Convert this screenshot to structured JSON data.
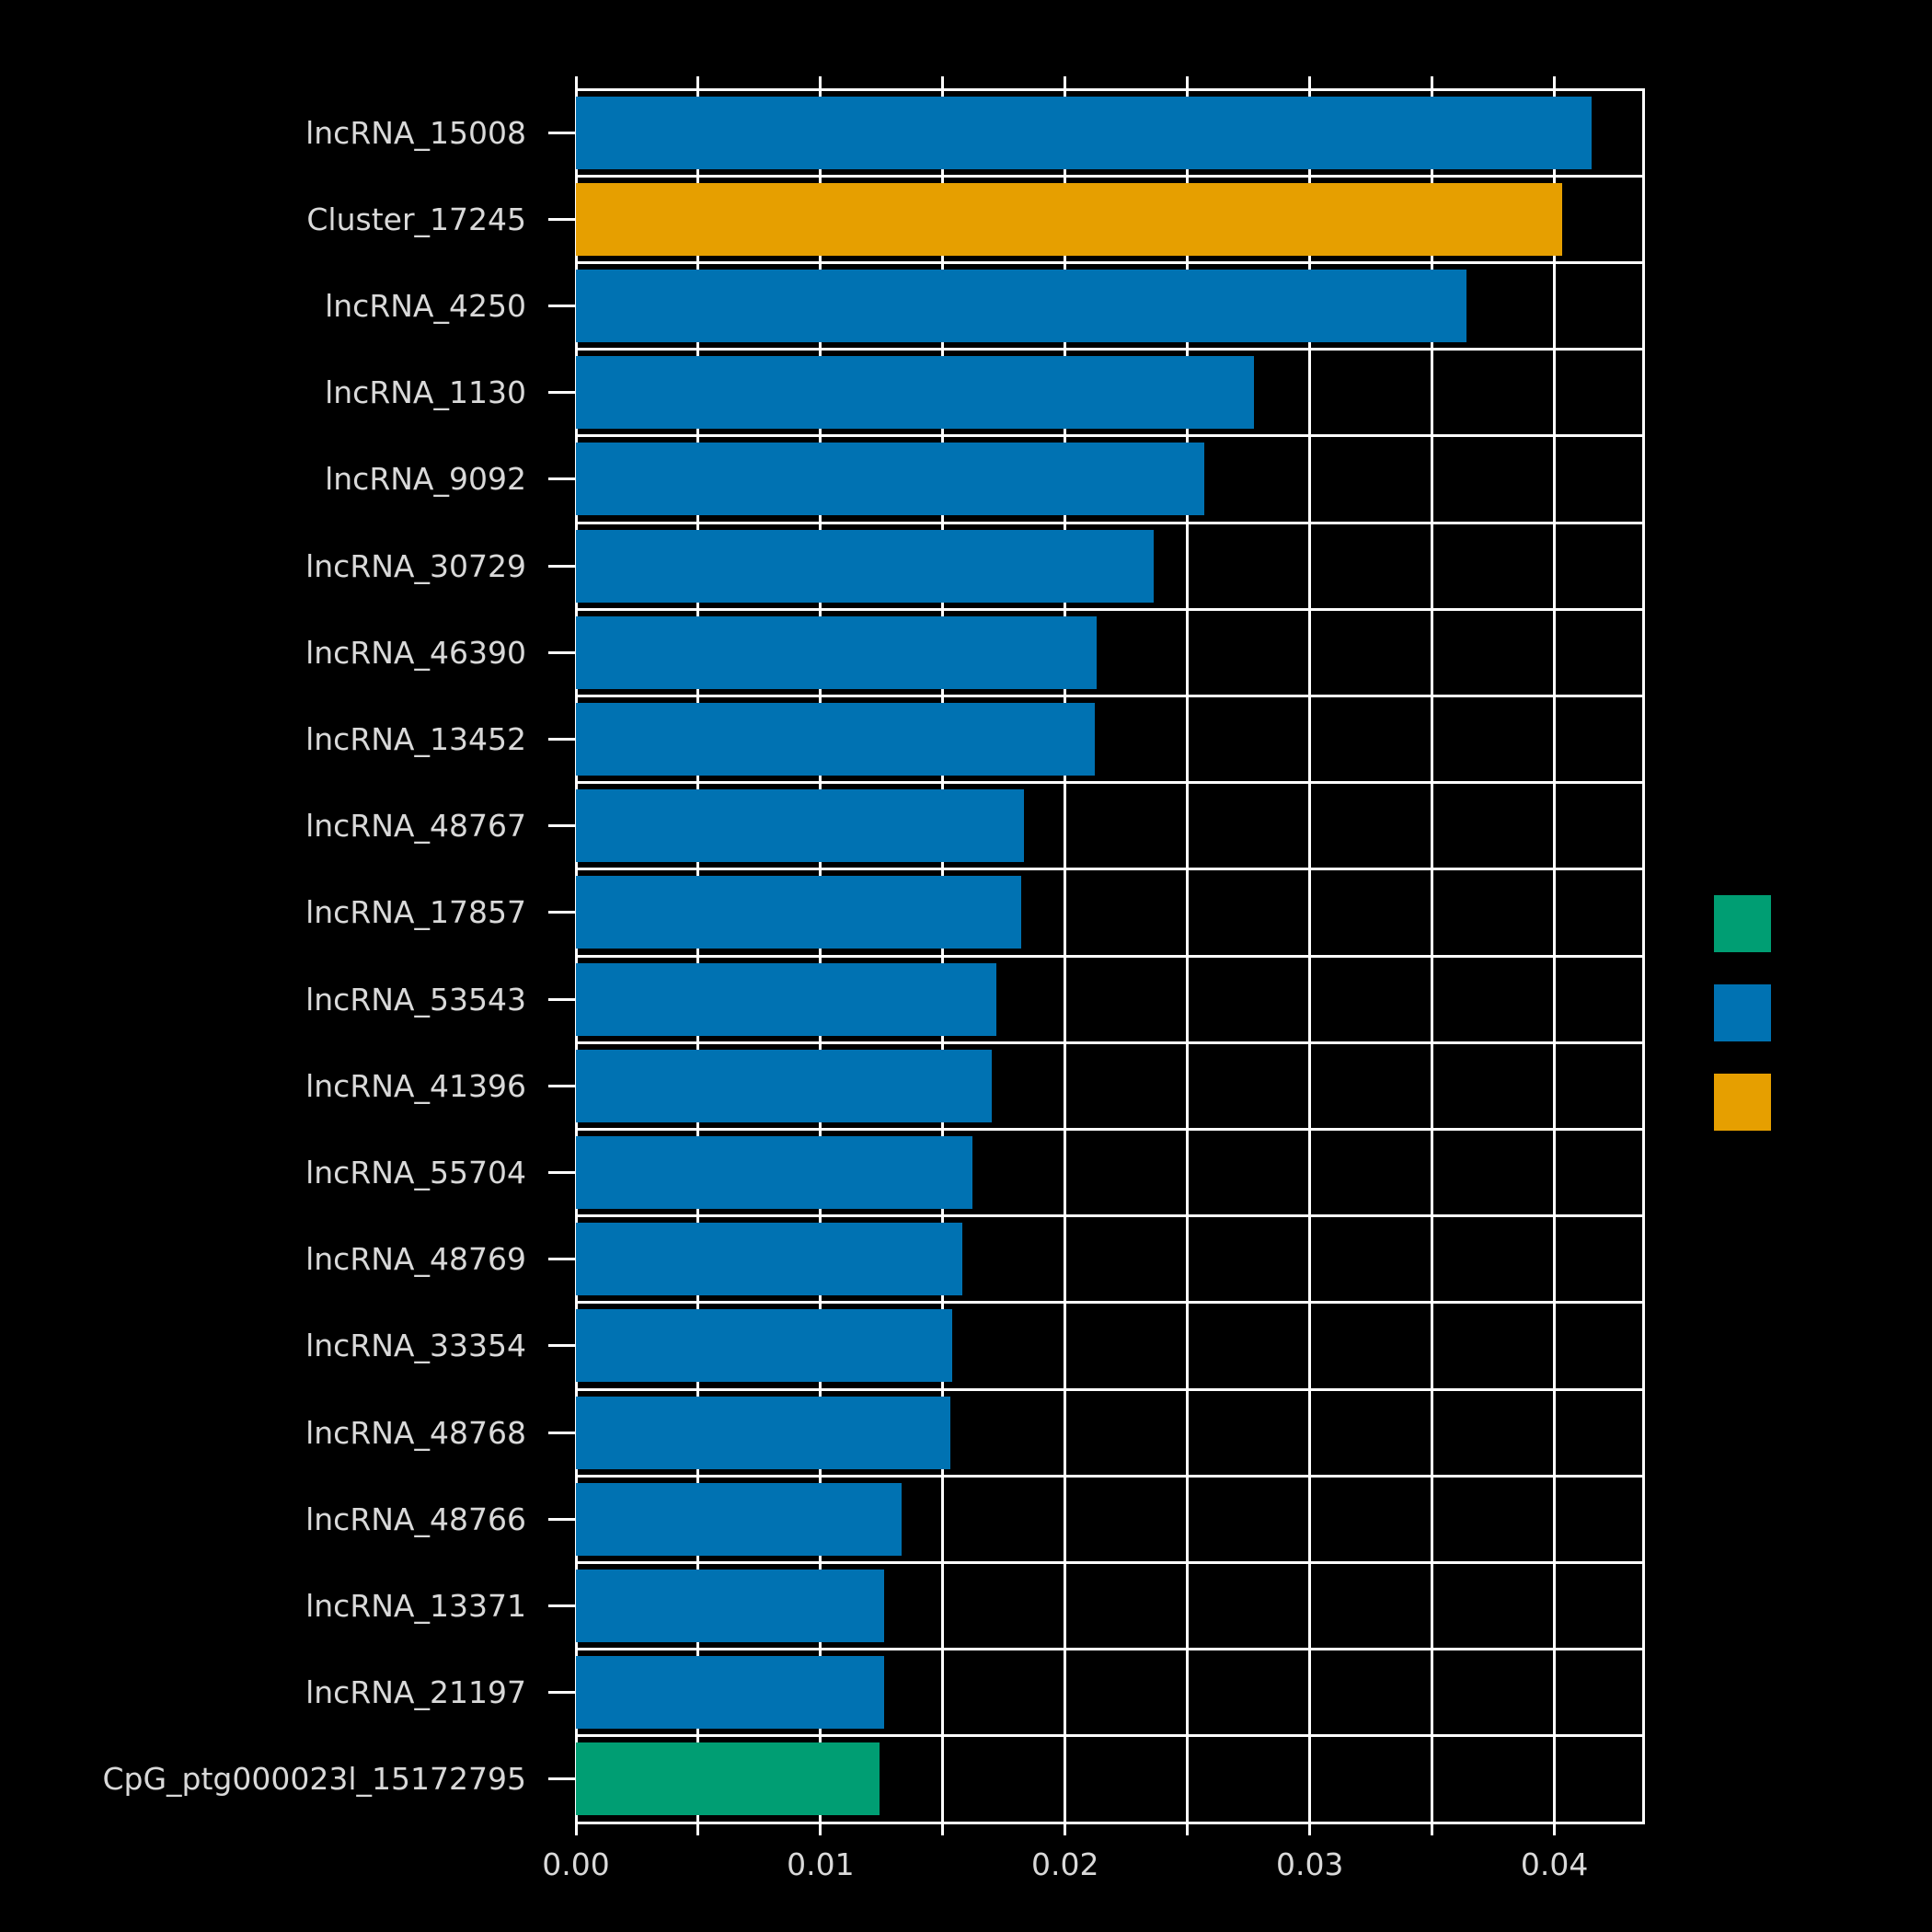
{
  "style": {
    "background": "#000000",
    "grid_color": "#ffffff",
    "text_color": "#d9d9d9",
    "palette": {
      "green": "#009E73",
      "blue": "#0072B2",
      "orange": "#E69F00"
    }
  },
  "chart_data": {
    "type": "bar",
    "orientation": "horizontal",
    "title": "",
    "xlabel": "",
    "ylabel": "",
    "xlim": [
      0,
      0.0437
    ],
    "x_tick_labels": [
      "0.00",
      "0.01",
      "0.02",
      "0.03",
      "0.04"
    ],
    "x_tick_values": [
      0,
      0.01,
      0.02,
      0.03,
      0.04
    ],
    "minor_tick_step": 0.005,
    "grid": true,
    "legend_position": "right",
    "legend_swatches": [
      {
        "name": "green-swatch",
        "color": "#009E73"
      },
      {
        "name": "blue-swatch",
        "color": "#0072B2"
      },
      {
        "name": "orange-swatch",
        "color": "#E69F00"
      }
    ],
    "bars": [
      {
        "label": "lncRNA_15008",
        "value": 0.0415,
        "color": "#0072B2"
      },
      {
        "label": "Cluster_17245",
        "value": 0.0403,
        "color": "#E69F00"
      },
      {
        "label": "lncRNA_4250",
        "value": 0.0364,
        "color": "#0072B2"
      },
      {
        "label": "lncRNA_1130",
        "value": 0.0277,
        "color": "#0072B2"
      },
      {
        "label": "lncRNA_9092",
        "value": 0.0257,
        "color": "#0072B2"
      },
      {
        "label": "lncRNA_30729",
        "value": 0.0236,
        "color": "#0072B2"
      },
      {
        "label": "lncRNA_46390",
        "value": 0.0213,
        "color": "#0072B2"
      },
      {
        "label": "lncRNA_13452",
        "value": 0.0212,
        "color": "#0072B2"
      },
      {
        "label": "lncRNA_48767",
        "value": 0.0183,
        "color": "#0072B2"
      },
      {
        "label": "lncRNA_17857",
        "value": 0.0182,
        "color": "#0072B2"
      },
      {
        "label": "lncRNA_53543",
        "value": 0.0172,
        "color": "#0072B2"
      },
      {
        "label": "lncRNA_41396",
        "value": 0.017,
        "color": "#0072B2"
      },
      {
        "label": "lncRNA_55704",
        "value": 0.0162,
        "color": "#0072B2"
      },
      {
        "label": "lncRNA_48769",
        "value": 0.0158,
        "color": "#0072B2"
      },
      {
        "label": "lncRNA_33354",
        "value": 0.0154,
        "color": "#0072B2"
      },
      {
        "label": "lncRNA_48768",
        "value": 0.0153,
        "color": "#0072B2"
      },
      {
        "label": "lncRNA_48766",
        "value": 0.0133,
        "color": "#0072B2"
      },
      {
        "label": "lncRNA_13371",
        "value": 0.0126,
        "color": "#0072B2"
      },
      {
        "label": "lncRNA_21197",
        "value": 0.0126,
        "color": "#0072B2"
      },
      {
        "label": "CpG_ptg000023l_15172795",
        "value": 0.0124,
        "color": "#009E73"
      }
    ]
  }
}
